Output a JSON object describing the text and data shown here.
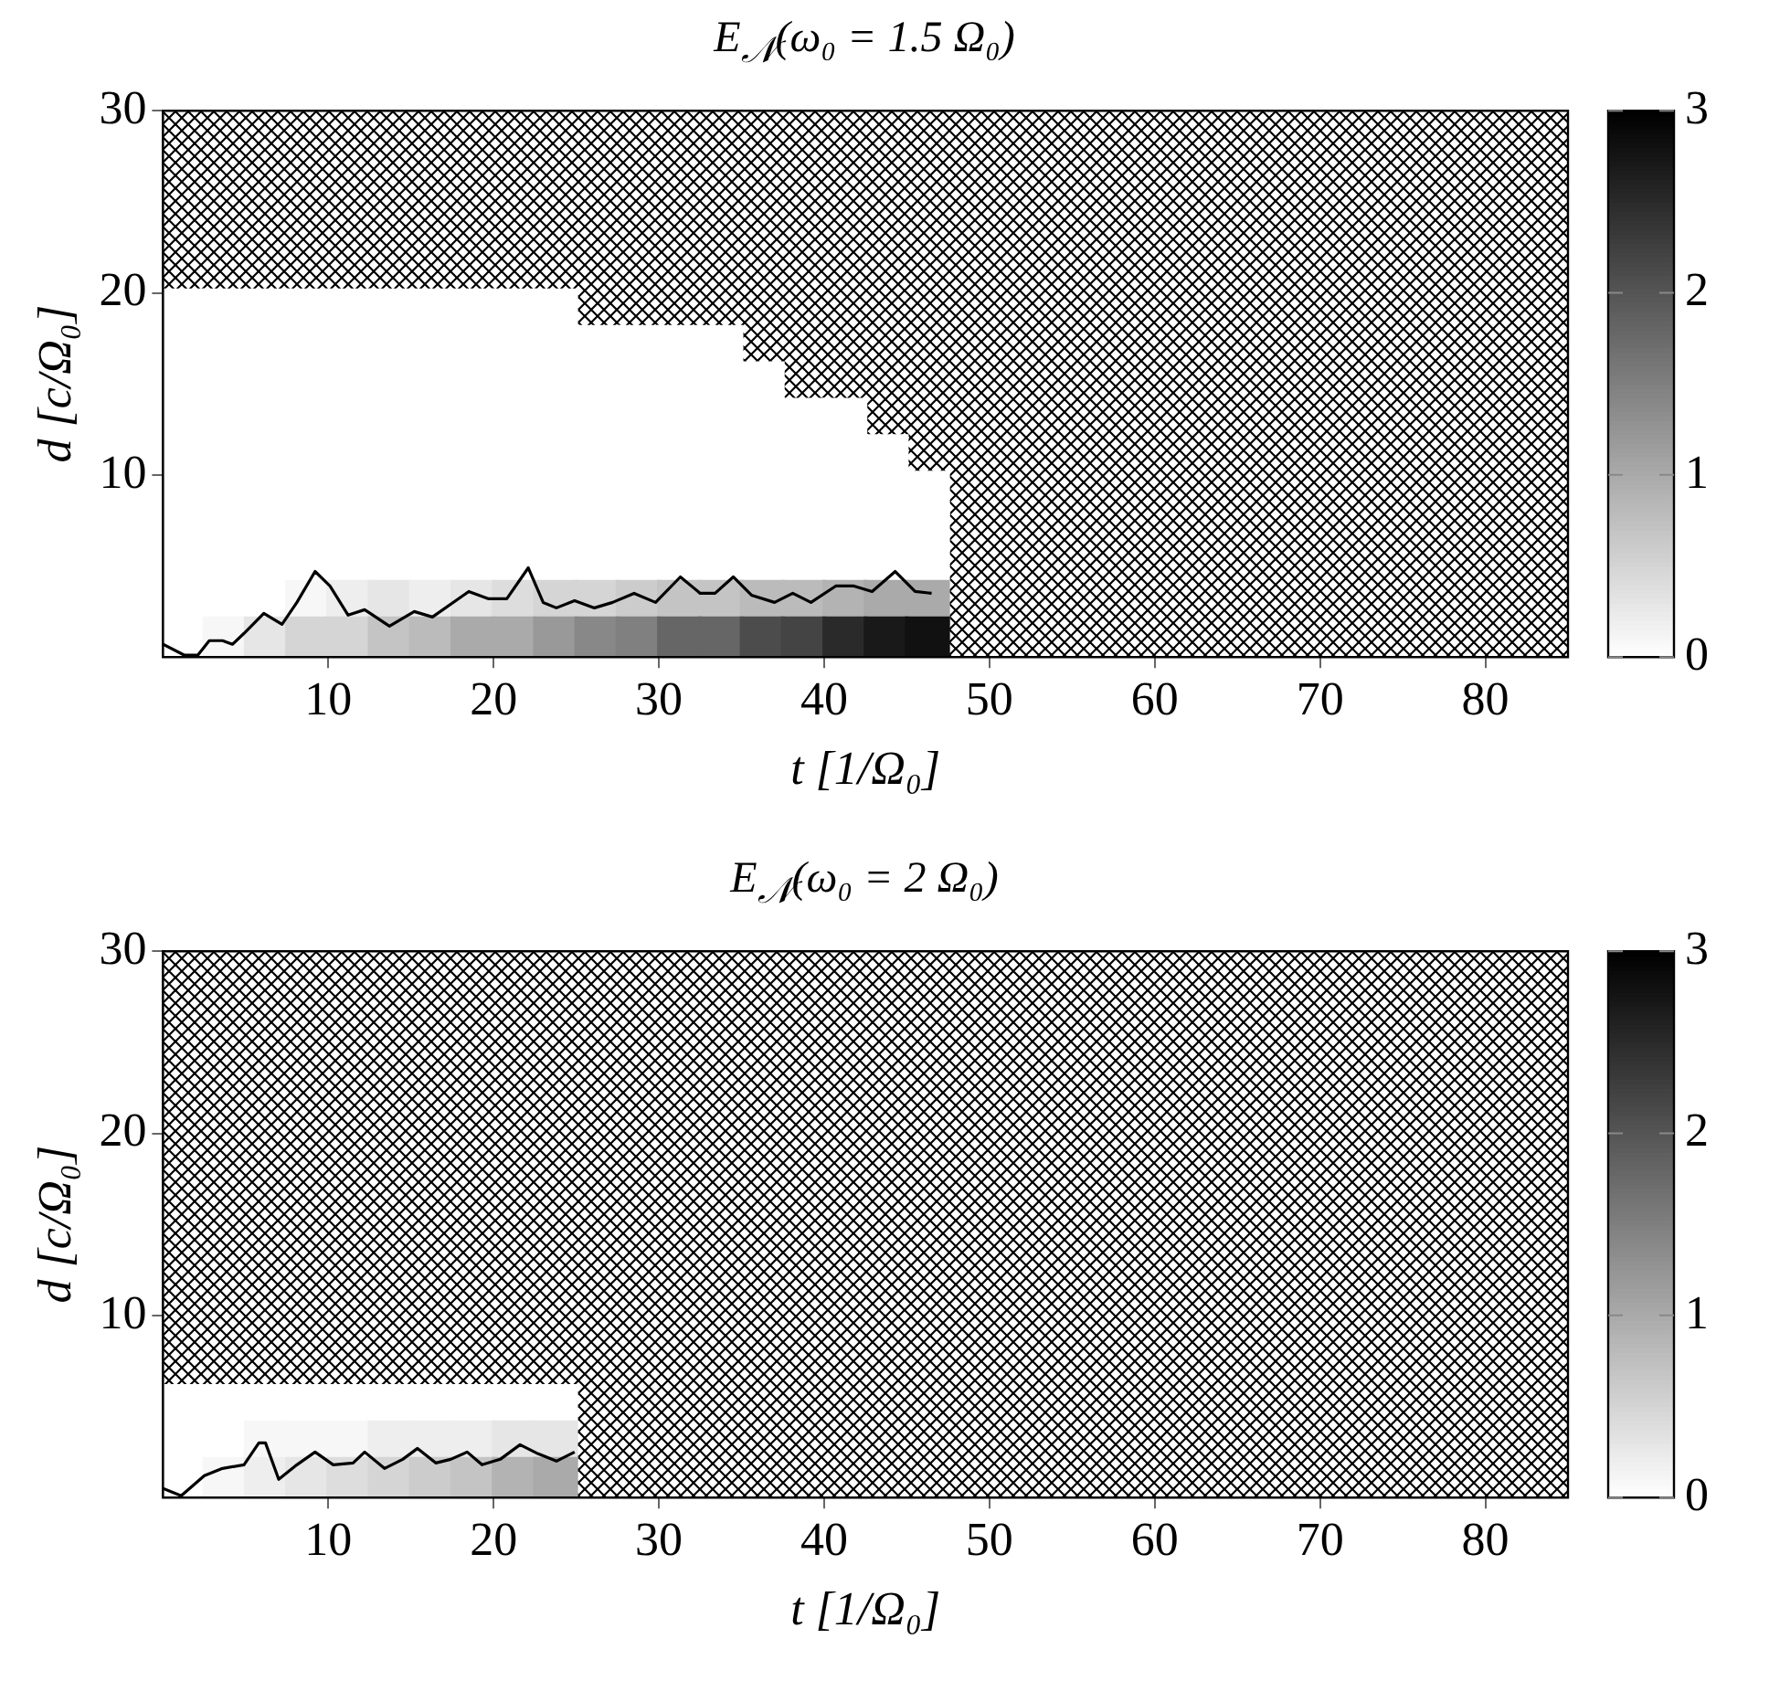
{
  "chart_data": [
    {
      "type": "scatter",
      "title": "E$_{𝒩}$(ω₀ = 1.5 Ω₀)",
      "xlabel": "t [1/Ω₀]",
      "ylabel": "d [c/Ω₀]",
      "xlim": [
        0,
        85
      ],
      "ylim": [
        0,
        30
      ],
      "xticks": [
        10,
        20,
        30,
        40,
        50,
        60,
        70,
        80
      ],
      "yticks": [
        10,
        20,
        30
      ],
      "clim": [
        0,
        3
      ],
      "cticks": [
        0,
        1,
        2,
        3
      ],
      "series": [
        {
          "type": "scatter",
          "marker": "square",
          "x": [
            1.25,
            3.75,
            6.25,
            8.75,
            11.25,
            13.75,
            16.25,
            18.75,
            21.25,
            23.75,
            1.25,
            3.75,
            6.25,
            8.75,
            11.25,
            13.75,
            16.25,
            18.75,
            21.25,
            23.75,
            26.25,
            28.75,
            31.25,
            33.75,
            1.25,
            3.75,
            6.25,
            8.75,
            11.25,
            13.75,
            16.25,
            18.75,
            21.25,
            23.75,
            26.25,
            28.75,
            31.25,
            33.75,
            36.25,
            1.25,
            3.75,
            6.25,
            8.75,
            11.25,
            13.75,
            16.25,
            18.75,
            21.25,
            23.75,
            26.25,
            28.75,
            31.25,
            33.75,
            36.25,
            38.75,
            41.25,
            1.25,
            3.75,
            6.25,
            8.75,
            11.25,
            13.75,
            16.25,
            18.75,
            21.25,
            23.75,
            26.25,
            28.75,
            31.25,
            33.75,
            36.25,
            38.75,
            41.25,
            43.75,
            1.25,
            3.75,
            6.25,
            8.75,
            11.25,
            13.75,
            16.25,
            18.75,
            21.25,
            23.75,
            26.25,
            28.75,
            31.25,
            33.75,
            36.25,
            38.75,
            41.25,
            43.75,
            46.25,
            1.25,
            3.75,
            6.25,
            8.75,
            11.25,
            13.75,
            16.25,
            18.75,
            21.25,
            23.75,
            26.25,
            28.75,
            31.25,
            33.75,
            36.25,
            38.75,
            41.25,
            43.75,
            46.25,
            1.25,
            3.75,
            6.25,
            8.75,
            11.25,
            13.75,
            16.25,
            18.75,
            21.25,
            23.75,
            26.25,
            28.75,
            31.25,
            33.75,
            36.25,
            38.75,
            41.25,
            43.75,
            46.25,
            1.25,
            3.75,
            6.25,
            8.75,
            11.25,
            13.75,
            16.25,
            18.75,
            21.25,
            23.75,
            26.25,
            28.75,
            31.25,
            33.75,
            36.25,
            38.75,
            41.25,
            43.75,
            46.25,
            1.25,
            3.75,
            6.25,
            8.75,
            11.25,
            13.75,
            16.25,
            18.75,
            21.25,
            23.75,
            26.25,
            28.75,
            31.25,
            33.75,
            36.25,
            38.75,
            41.25,
            43.75,
            46.25
          ],
          "values": [
            19,
            19,
            19,
            19,
            19,
            19,
            19,
            19,
            19,
            19,
            17,
            17,
            17,
            17,
            17,
            17,
            17,
            17,
            17,
            17,
            17,
            17,
            17,
            17,
            15,
            15,
            15,
            15,
            15,
            15,
            15,
            15,
            15,
            15,
            15,
            15,
            15,
            15,
            15,
            13,
            13,
            13,
            13,
            13,
            13,
            13,
            13,
            13,
            13,
            13,
            13,
            13,
            13,
            13,
            13,
            13,
            11,
            11,
            11,
            11,
            11,
            11,
            11,
            11,
            11,
            11,
            11,
            11,
            11,
            11,
            11,
            11,
            11,
            11,
            9,
            9,
            9,
            9,
            9,
            9,
            9,
            9,
            9,
            9,
            9,
            9,
            9,
            9,
            9,
            9,
            9,
            9,
            9,
            7,
            7,
            7,
            7,
            7,
            7,
            7,
            7,
            7,
            7,
            7,
            7,
            7,
            7,
            7,
            7,
            7,
            7,
            7,
            5,
            5,
            5,
            5,
            5,
            5,
            5,
            5,
            5,
            5,
            5,
            5,
            5,
            5,
            5,
            5,
            5,
            5,
            5,
            3,
            3,
            3,
            3,
            3,
            3,
            3,
            3,
            3,
            3,
            3,
            3,
            3,
            3,
            3,
            3,
            3,
            3,
            3,
            1,
            1,
            1,
            1,
            1,
            1,
            1,
            1,
            1,
            1,
            1,
            1,
            1,
            1,
            1,
            1,
            1,
            1,
            1
          ],
          "cvalues": [
            0,
            0,
            0,
            0,
            0,
            0,
            0,
            0,
            0,
            0,
            0,
            0,
            0,
            0,
            0,
            0,
            0,
            0,
            0,
            0,
            0,
            0,
            0,
            0,
            0,
            0,
            0,
            0,
            0,
            0,
            0,
            0,
            0,
            0,
            0,
            0,
            0,
            0,
            0,
            0,
            0,
            0,
            0,
            0,
            0,
            0,
            0,
            0,
            0,
            0,
            0,
            0,
            0,
            0,
            0,
            0,
            0,
            0,
            0,
            0,
            0,
            0,
            0,
            0,
            0,
            0,
            0,
            0,
            0,
            0,
            0,
            0,
            0,
            0,
            0,
            0,
            0,
            0,
            0,
            0,
            0,
            0,
            0,
            0,
            0,
            0,
            0,
            0,
            0,
            0,
            0,
            0,
            0,
            0,
            0,
            0,
            0,
            0,
            0,
            0,
            0,
            0,
            0,
            0,
            0,
            0,
            0,
            0,
            0,
            0,
            0,
            0,
            0,
            0,
            0,
            0,
            0,
            0,
            0,
            0,
            0,
            0,
            0,
            0,
            0,
            0,
            0,
            0,
            0,
            0,
            0,
            0,
            0,
            0,
            0.1,
            0.2,
            0.3,
            0.2,
            0.3,
            0.4,
            0.5,
            0.5,
            0.6,
            0.7,
            0.7,
            0.8,
            0.8,
            0.9,
            1.0,
            1.0,
            0,
            0.1,
            0.3,
            0.5,
            0.5,
            0.7,
            0.8,
            1.0,
            1.0,
            1.2,
            1.4,
            1.5,
            1.8,
            1.8,
            2.1,
            2.2,
            2.5,
            2.7,
            2.8
          ],
          "colors": [
            "#ffffff",
            "#ffffff",
            "#ffffff",
            "#ffffff",
            "#ffffff",
            "#ffffff",
            "#ffffff",
            "#ffffff",
            "#ffffff",
            "#ffffff",
            "#ffffff",
            "#ffffff",
            "#ffffff",
            "#ffffff",
            "#ffffff",
            "#ffffff",
            "#ffffff",
            "#ffffff",
            "#ffffff",
            "#ffffff",
            "#ffffff",
            "#ffffff",
            "#ffffff",
            "#ffffff",
            "#ffffff",
            "#ffffff",
            "#ffffff",
            "#ffffff",
            "#ffffff",
            "#ffffff",
            "#ffffff",
            "#ffffff",
            "#ffffff",
            "#ffffff",
            "#ffffff",
            "#ffffff",
            "#ffffff",
            "#ffffff",
            "#ffffff",
            "#ffffff",
            "#ffffff",
            "#ffffff",
            "#ffffff",
            "#ffffff",
            "#ffffff",
            "#ffffff",
            "#ffffff",
            "#ffffff",
            "#ffffff",
            "#ffffff",
            "#ffffff",
            "#ffffff",
            "#ffffff",
            "#ffffff",
            "#ffffff",
            "#ffffff",
            "#ffffff",
            "#ffffff",
            "#ffffff",
            "#ffffff",
            "#ffffff",
            "#ffffff",
            "#ffffff",
            "#ffffff",
            "#ffffff",
            "#ffffff",
            "#ffffff",
            "#ffffff",
            "#ffffff",
            "#ffffff",
            "#ffffff",
            "#ffffff",
            "#ffffff",
            "#ffffff",
            "#ffffff",
            "#ffffff",
            "#ffffff",
            "#ffffff",
            "#ffffff",
            "#ffffff",
            "#ffffff",
            "#ffffff",
            "#ffffff",
            "#ffffff",
            "#ffffff",
            "#ffffff",
            "#ffffff",
            "#ffffff",
            "#ffffff",
            "#ffffff",
            "#ffffff",
            "#ffffff",
            "#ffffff",
            "#ffffff",
            "#ffffff",
            "#ffffff",
            "#ffffff",
            "#ffffff",
            "#ffffff",
            "#ffffff",
            "#ffffff",
            "#ffffff",
            "#ffffff",
            "#ffffff",
            "#ffffff",
            "#ffffff",
            "#ffffff",
            "#ffffff",
            "#ffffff",
            "#ffffff",
            "#ffffff",
            "#ffffff",
            "#ffffff",
            "#ffffff",
            "#ffffff",
            "#ffffff",
            "#ffffff",
            "#ffffff",
            "#ffffff",
            "#ffffff",
            "#ffffff",
            "#ffffff",
            "#ffffff",
            "#ffffff",
            "#ffffff",
            "#ffffff",
            "#ffffff",
            "#ffffff",
            "#ffffff",
            "#ffffff",
            "#ffffff",
            "#ffffff",
            "#ffffff",
            "#ffffff",
            "#f7f7f7",
            "#eeeeee",
            "#e6e6e6",
            "#eeeeee",
            "#e6e6e6",
            "#dddddd",
            "#d5d5d5",
            "#d5d5d5",
            "#cccccc",
            "#c4c4c4",
            "#c4c4c4",
            "#bbbbbb",
            "#bbbbbb",
            "#b3b3b3",
            "#aaaaaa",
            "#aaaaaa",
            "#ffffff",
            "#f7f7f7",
            "#e6e6e6",
            "#d5d5d5",
            "#d5d5d5",
            "#c4c4c4",
            "#bbbbbb",
            "#aaaaaa",
            "#aaaaaa",
            "#999999",
            "#888888",
            "#808080",
            "#666666",
            "#666666",
            "#4d4d4d",
            "#444444",
            "#2b2b2b",
            "#1a1a1a",
            "#111111"
          ]
        },
        {
          "type": "line",
          "marker": "none",
          "color": "#000000",
          "x": [
            0,
            1.3,
            2.1,
            2.8,
            3.6,
            4.2,
            4.9,
            6.1,
            7.2,
            8.1,
            9.2,
            10.1,
            11.2,
            12.2,
            13.7,
            15.2,
            16.3,
            18.5,
            19.7,
            20.8,
            22.1,
            23.0,
            23.8,
            24.9,
            26.1,
            27.2,
            28.5,
            29.8,
            31.3,
            32.5,
            33.4,
            34.5,
            35.6,
            37.0,
            38.1,
            39.2,
            40.7,
            41.8,
            42.9,
            44.3,
            45.5,
            46.5
          ],
          "values": [
            0.7,
            0.1,
            0.1,
            0.9,
            0.9,
            0.7,
            1.3,
            2.4,
            1.8,
            3.0,
            4.7,
            3.9,
            2.3,
            2.6,
            1.7,
            2.5,
            2.2,
            3.6,
            3.2,
            3.2,
            4.9,
            3.0,
            2.7,
            3.1,
            2.7,
            3.0,
            3.5,
            3.0,
            4.4,
            3.5,
            3.5,
            4.4,
            3.4,
            3.0,
            3.5,
            3.0,
            3.9,
            3.9,
            3.6,
            4.7,
            3.6,
            3.5
          ]
        }
      ]
    },
    {
      "type": "scatter",
      "title": "E$_{𝒩}$(ω₀ = 2 Ω₀)",
      "xlabel": "t [1/Ω₀]",
      "ylabel": "d [c/Ω₀]",
      "xlim": [
        0,
        85
      ],
      "ylim": [
        0,
        30
      ],
      "xticks": [
        10,
        20,
        30,
        40,
        50,
        60,
        70,
        80
      ],
      "yticks": [
        10,
        20,
        30
      ],
      "clim": [
        0,
        3
      ],
      "cticks": [
        0,
        1,
        2,
        3
      ],
      "series": [
        {
          "type": "scatter",
          "marker": "square",
          "x": [
            1.25,
            3.75,
            6.25,
            8.75,
            11.25,
            13.75,
            16.25,
            18.75,
            21.25,
            23.75,
            1.25,
            3.75,
            6.25,
            8.75,
            11.25,
            13.75,
            16.25,
            18.75,
            21.25,
            23.75,
            1.25,
            3.75,
            6.25,
            8.75,
            11.25,
            13.75,
            16.25,
            18.75,
            21.25,
            23.75
          ],
          "values": [
            5,
            5,
            5,
            5,
            5,
            5,
            5,
            5,
            5,
            5,
            3,
            3,
            3,
            3,
            3,
            3,
            3,
            3,
            3,
            3,
            1,
            1,
            1,
            1,
            1,
            1,
            1,
            1,
            1,
            1
          ],
          "cvalues": [
            0,
            0,
            0,
            0,
            0,
            0,
            0,
            0,
            0,
            0,
            0,
            0,
            0.1,
            0.1,
            0.1,
            0.2,
            0.2,
            0.2,
            0.3,
            0.3,
            0,
            0.1,
            0.2,
            0.3,
            0.4,
            0.5,
            0.6,
            0.7,
            0.9,
            1.0
          ],
          "colors": [
            "#ffffff",
            "#ffffff",
            "#ffffff",
            "#ffffff",
            "#ffffff",
            "#ffffff",
            "#ffffff",
            "#ffffff",
            "#ffffff",
            "#ffffff",
            "#ffffff",
            "#ffffff",
            "#f7f7f7",
            "#f7f7f7",
            "#f7f7f7",
            "#eeeeee",
            "#eeeeee",
            "#eeeeee",
            "#e6e6e6",
            "#e6e6e6",
            "#ffffff",
            "#f7f7f7",
            "#eeeeee",
            "#e6e6e6",
            "#dddddd",
            "#d5d5d5",
            "#cccccc",
            "#c4c4c4",
            "#b3b3b3",
            "#aaaaaa"
          ]
        },
        {
          "type": "line",
          "marker": "none",
          "color": "#000000",
          "x": [
            0,
            1.1,
            2.5,
            3.6,
            4.9,
            5.8,
            6.2,
            7.0,
            8.1,
            9.2,
            10.3,
            11.5,
            12.2,
            13.4,
            14.5,
            15.4,
            16.5,
            17.4,
            18.4,
            19.3,
            20.4,
            21.6,
            22.7,
            23.8,
            24.9
          ],
          "values": [
            0.5,
            0.1,
            1.2,
            1.6,
            1.8,
            3.0,
            3.0,
            1.0,
            1.8,
            2.5,
            1.8,
            1.9,
            2.5,
            1.6,
            2.1,
            2.7,
            1.9,
            2.1,
            2.5,
            1.8,
            2.1,
            2.9,
            2.4,
            2.0,
            2.5
          ]
        }
      ]
    }
  ]
}
